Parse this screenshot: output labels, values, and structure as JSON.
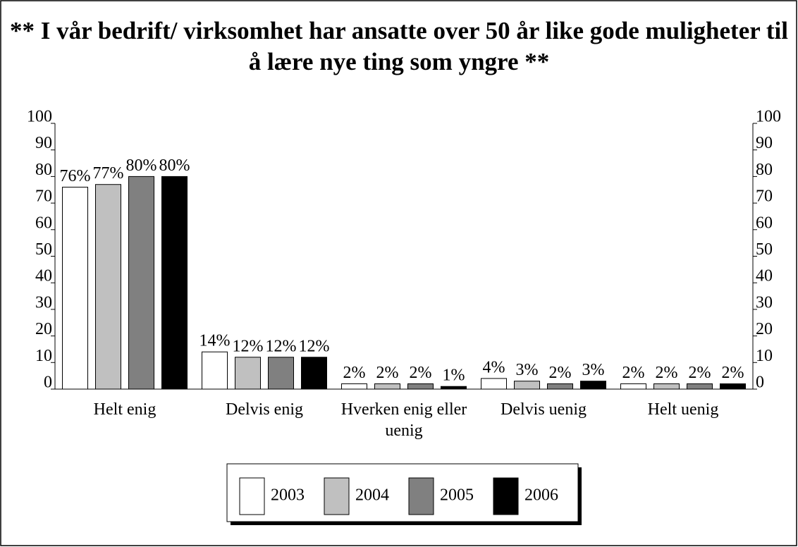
{
  "chart_data": {
    "type": "bar",
    "title": "** I vår bedrift/ virksomhet har ansatte over 50 år like gode muligheter til å lære nye ting som yngre **",
    "categories": [
      "Helt enig",
      "Delvis enig",
      "Hverken enig eller uenig",
      "Delvis uenig",
      "Helt uenig"
    ],
    "series": [
      {
        "name": "2003",
        "color": "#ffffff",
        "values": [
          76,
          14,
          2,
          4,
          2
        ],
        "value_labels": [
          "76%",
          "14%",
          "2%",
          "4%",
          "2%"
        ]
      },
      {
        "name": "2004",
        "color": "#c0c0c0",
        "values": [
          77,
          12,
          2,
          3,
          2
        ],
        "value_labels": [
          "77%",
          "12%",
          "2%",
          "3%",
          "2%"
        ]
      },
      {
        "name": "2005",
        "color": "#808080",
        "values": [
          80,
          12,
          2,
          2,
          2
        ],
        "value_labels": [
          "80%",
          "12%",
          "2%",
          "2%",
          "2%"
        ]
      },
      {
        "name": "2006",
        "color": "#000000",
        "values": [
          80,
          12,
          1,
          3,
          2
        ],
        "value_labels": [
          "80%",
          "12%",
          "1%",
          "3%",
          "2%"
        ]
      }
    ],
    "ylim": [
      0,
      100
    ],
    "yticks": [
      0,
      10,
      20,
      30,
      40,
      50,
      60,
      70,
      80,
      90,
      100
    ],
    "y2lim": [
      0,
      100
    ],
    "y2ticks": [
      0,
      10,
      20,
      30,
      40,
      50,
      60,
      70,
      80,
      90,
      100
    ],
    "legend": "bottom"
  }
}
